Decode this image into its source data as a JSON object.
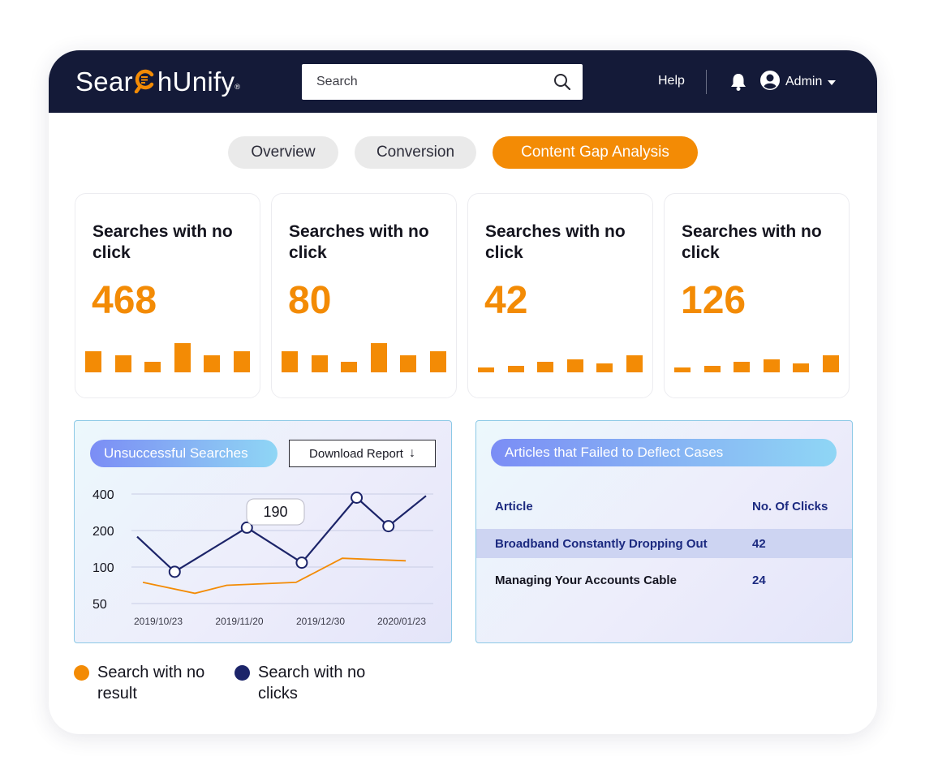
{
  "brand": {
    "name_pre": "Sear",
    "name_post": "hUnify",
    "registered": "®",
    "logo_icon": "magnifier-c-icon",
    "accent": "#f38b05",
    "navy": "#141a38"
  },
  "header": {
    "search_placeholder": "Search",
    "search_icon": "search-icon",
    "help_label": "Help",
    "notification_icon": "bell-icon",
    "user_icon": "user-circle-icon",
    "user_label": "Admin",
    "user_menu_icon": "caret-down-icon"
  },
  "tabs": [
    {
      "label": "Overview",
      "active": false
    },
    {
      "label": "Conversion",
      "active": false
    },
    {
      "label": "Content Gap Analysis",
      "active": true
    }
  ],
  "cards": [
    {
      "title": "Searches with no click",
      "value": "468",
      "bars": [
        0.62,
        0.5,
        0.3,
        0.85,
        0.5,
        0.62
      ]
    },
    {
      "title": "Searches with no click",
      "value": "80",
      "bars": [
        0.62,
        0.5,
        0.3,
        0.85,
        0.5,
        0.62
      ]
    },
    {
      "title": "Searches with no click",
      "value": "42",
      "bars": [
        0.15,
        0.2,
        0.3,
        0.38,
        0.25,
        0.5
      ]
    },
    {
      "title": "Searches with no click",
      "value": "126",
      "bars": [
        0.15,
        0.2,
        0.3,
        0.38,
        0.25,
        0.5
      ]
    }
  ],
  "unsuccessful": {
    "title": "Unsuccessful Searches",
    "download_label": "Download Report",
    "download_icon": "arrow-down-icon",
    "tooltip": "190"
  },
  "chart_data": {
    "type": "line",
    "y_ticks": [
      "400",
      "200",
      "100",
      "50"
    ],
    "x_ticks": [
      "2019/10/23",
      "2019/11/20",
      "2019/12/30",
      "2020/01/23"
    ],
    "grid": true,
    "series": [
      {
        "name": "Search with no clicks",
        "color": "#1c2469",
        "markers": true,
        "points": [
          [
            0,
            1.83
          ],
          [
            0.13,
            0.87
          ],
          [
            0.38,
            2.08
          ],
          [
            0.57,
            1.12
          ],
          [
            0.76,
            2.9
          ],
          [
            0.87,
            2.12
          ],
          [
            1,
            2.95
          ]
        ]
      },
      {
        "name": "Search with no result",
        "color": "#f38b05",
        "markers": false,
        "points": [
          [
            0.02,
            0.58
          ],
          [
            0.2,
            0.28
          ],
          [
            0.31,
            0.5
          ],
          [
            0.55,
            0.58
          ],
          [
            0.71,
            1.24
          ],
          [
            0.93,
            1.17
          ]
        ]
      }
    ]
  },
  "legend": [
    {
      "label": "Search with no result",
      "color": "#f38b05"
    },
    {
      "label": "Search with no clicks",
      "color": "#1c2469"
    }
  ],
  "articles": {
    "title": "Articles that Failed to Deflect Cases",
    "col_article": "Article",
    "col_clicks": "No. Of Clicks",
    "rows": [
      {
        "article": "Broadband Constantly Dropping Out",
        "clicks": "42"
      },
      {
        "article": "Managing Your Accounts Cable",
        "clicks": "24"
      }
    ]
  }
}
